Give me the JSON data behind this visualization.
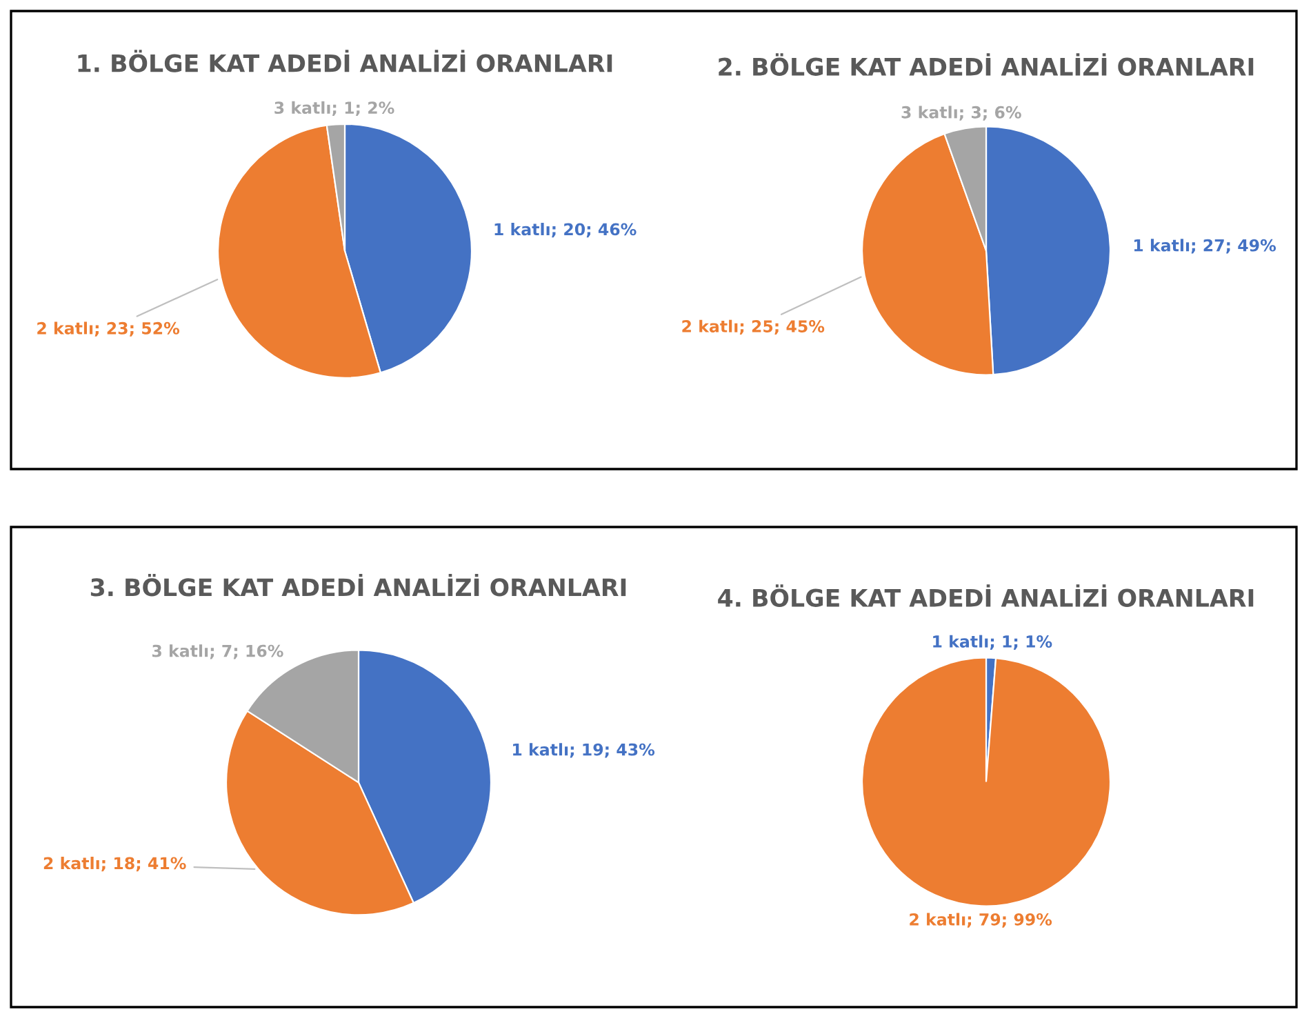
{
  "chart_data": [
    {
      "type": "pie",
      "title": "1. BÖLGE KAT ADEDİ ANALİZİ ORANLARI",
      "categories": [
        "1 katlı",
        "2 katlı",
        "3 katlı"
      ],
      "values": [
        20,
        23,
        1
      ],
      "colors": [
        "#4472c4",
        "#ed7d31",
        "#a5a5a5"
      ],
      "value_labels": [
        "20; 46%",
        "23; 52%",
        "1; 2%"
      ]
    },
    {
      "type": "pie",
      "title": "2. BÖLGE KAT ADEDİ ANALİZİ ORANLARI",
      "categories": [
        "1 katlı",
        "2 katlı",
        "3 katlı"
      ],
      "values": [
        27,
        25,
        3
      ],
      "colors": [
        "#4472c4",
        "#ed7d31",
        "#a5a5a5"
      ],
      "value_labels": [
        "27; 49%",
        "25; 45%",
        "3; 6%"
      ]
    },
    {
      "type": "pie",
      "title": "3. BÖLGE KAT ADEDİ ANALİZİ ORANLARI",
      "categories": [
        "1 katlı",
        "2 katlı",
        "3 katlı"
      ],
      "values": [
        19,
        18,
        7
      ],
      "colors": [
        "#4472c4",
        "#ed7d31",
        "#a5a5a5"
      ],
      "value_labels": [
        "19; 43%",
        "18; 41%",
        "7; 16%"
      ]
    },
    {
      "type": "pie",
      "title": "4. BÖLGE KAT ADEDİ ANALİZİ ORANLARI",
      "categories": [
        "1 katlı",
        "2 katlı"
      ],
      "values": [
        1,
        79
      ],
      "colors": [
        "#4472c4",
        "#ed7d31"
      ],
      "value_labels": [
        "1; 1%",
        "79; 99%"
      ]
    }
  ]
}
